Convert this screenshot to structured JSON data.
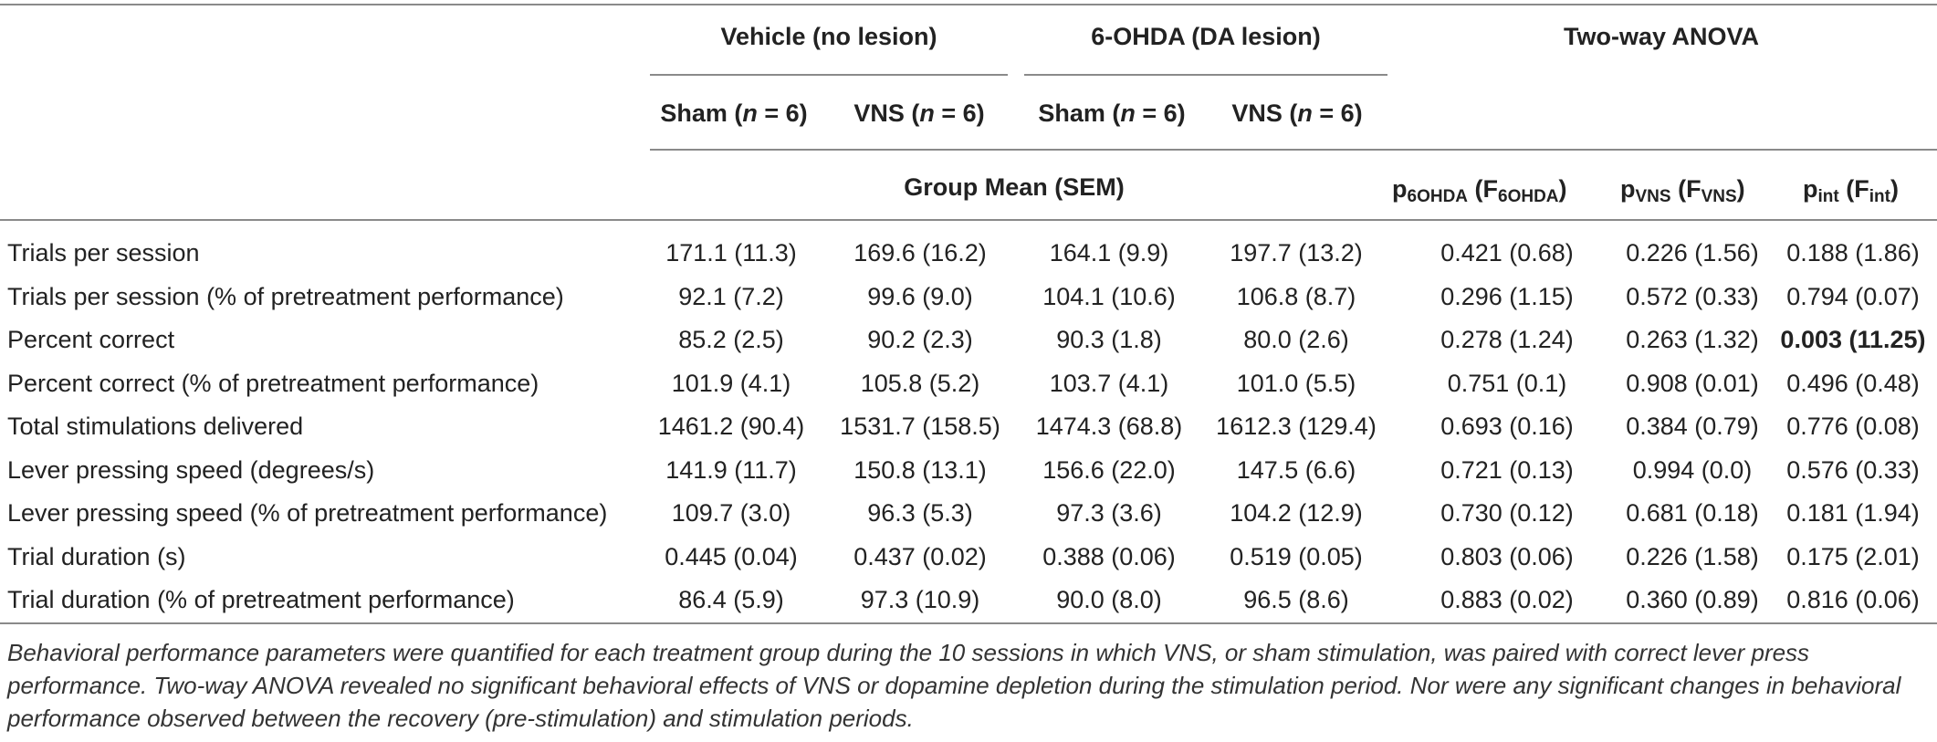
{
  "header": {
    "group_vehicle": "Vehicle (no lesion)",
    "group_6ohda": "6-OHDA (DA lesion)",
    "group_anova": "Two-way ANOVA",
    "sub_sham": "Sham",
    "sub_vns": "VNS",
    "n_open": "(",
    "n_letter": "n",
    "n_value": " = 6)",
    "group_mean": "Group Mean (SEM)",
    "p6_p": "p",
    "p6_sub": "6OHDA",
    "p6_f": " (F",
    "p6_fsub": "6OHDA",
    "p6_close": ")",
    "pv_p": "p",
    "pv_sub": "VNS",
    "pv_f": " (F",
    "pv_fsub": "VNS",
    "pv_close": ")",
    "pi_p": "p",
    "pi_sub": "int",
    "pi_f": " (F",
    "pi_fsub": "int",
    "pi_close": ")"
  },
  "rows": [
    {
      "label": "Trials per session",
      "v_sham": "171.1 (11.3)",
      "v_vns": "169.6 (16.2)",
      "o_sham": "164.1 (9.9)",
      "o_vns": "197.7 (13.2)",
      "p6": "0.421 (0.68)",
      "pv": "0.226 (1.56)",
      "pi": "0.188 (1.86)"
    },
    {
      "label": "Trials per session (% of pretreatment performance)",
      "v_sham": "92.1 (7.2)",
      "v_vns": "99.6 (9.0)",
      "o_sham": "104.1 (10.6)",
      "o_vns": "106.8 (8.7)",
      "p6": "0.296 (1.15)",
      "pv": "0.572 (0.33)",
      "pi": "0.794 (0.07)"
    },
    {
      "label": "Percent correct",
      "v_sham": "85.2 (2.5)",
      "v_vns": "90.2 (2.3)",
      "o_sham": "90.3 (1.8)",
      "o_vns": "80.0 (2.6)",
      "p6": "0.278 (1.24)",
      "pv": "0.263 (1.32)",
      "pi": "0.003 (11.25)"
    },
    {
      "label": "Percent correct (% of pretreatment performance)",
      "v_sham": "101.9 (4.1)",
      "v_vns": "105.8 (5.2)",
      "o_sham": "103.7 (4.1)",
      "o_vns": "101.0 (5.5)",
      "p6": "0.751 (0.1)",
      "pv": "0.908 (0.01)",
      "pi": "0.496 (0.48)"
    },
    {
      "label": "Total stimulations delivered",
      "v_sham": "1461.2 (90.4)",
      "v_vns": "1531.7 (158.5)",
      "o_sham": "1474.3 (68.8)",
      "o_vns": "1612.3 (129.4)",
      "p6": "0.693 (0.16)",
      "pv": "0.384 (0.79)",
      "pi": "0.776 (0.08)"
    },
    {
      "label": "Lever pressing speed (degrees/s)",
      "v_sham": "141.9 (11.7)",
      "v_vns": "150.8 (13.1)",
      "o_sham": "156.6 (22.0)",
      "o_vns": "147.5 (6.6)",
      "p6": "0.721 (0.13)",
      "pv": "0.994 (0.0)",
      "pi": "0.576 (0.33)"
    },
    {
      "label": "Lever pressing speed (% of pretreatment performance)",
      "v_sham": "109.7 (3.0)",
      "v_vns": "96.3 (5.3)",
      "o_sham": "97.3 (3.6)",
      "o_vns": "104.2 (12.9)",
      "p6": "0.730 (0.12)",
      "pv": "0.681 (0.18)",
      "pi": "0.181 (1.94)"
    },
    {
      "label": "Trial duration (s)",
      "v_sham": "0.445 (0.04)",
      "v_vns": "0.437 (0.02)",
      "o_sham": "0.388 (0.06)",
      "o_vns": "0.519 (0.05)",
      "p6": "0.803 (0.06)",
      "pv": "0.226 (1.58)",
      "pi": "0.175 (2.01)"
    },
    {
      "label": "Trial duration (% of pretreatment performance)",
      "v_sham": "86.4 (5.9)",
      "v_vns": "97.3 (10.9)",
      "o_sham": "90.0 (8.0)",
      "o_vns": "96.5 (8.6)",
      "p6": "0.883 (0.02)",
      "pv": "0.360 (0.89)",
      "pi": "0.816 (0.06)"
    }
  ],
  "caption": "Behavioral performance parameters were quantified for each treatment group during the 10 sessions in which VNS, or sham stimulation, was paired with correct lever press performance. Two-way ANOVA revealed no significant behavioral effects of VNS or dopamine depletion during the stimulation period. Nor were any significant changes in behavioral performance observed between the recovery (pre-stimulation) and stimulation periods."
}
